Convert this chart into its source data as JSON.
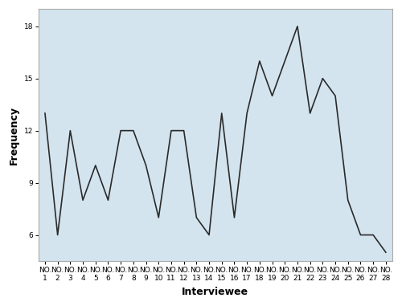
{
  "y_values": [
    13,
    6,
    12,
    8,
    10,
    8,
    12,
    12,
    10,
    7,
    12,
    12,
    7,
    6,
    13,
    7,
    13,
    16,
    14,
    16,
    18,
    13,
    15,
    14,
    8,
    6,
    6,
    5
  ],
  "ylabel": "Frequency",
  "xlabel": "Interviewee",
  "yticks": [
    6,
    9,
    12,
    15,
    18
  ],
  "ylim": [
    4.5,
    19
  ],
  "xlim": [
    0.5,
    28.5
  ],
  "bg_color": "#d4e4ee",
  "fig_bg_color": "#ffffff",
  "line_color": "#2a2a2a",
  "line_width": 1.2,
  "xlabel_fontsize": 9,
  "ylabel_fontsize": 9,
  "tick_label_fontsize": 6.5,
  "border_color": "#aaaaaa"
}
